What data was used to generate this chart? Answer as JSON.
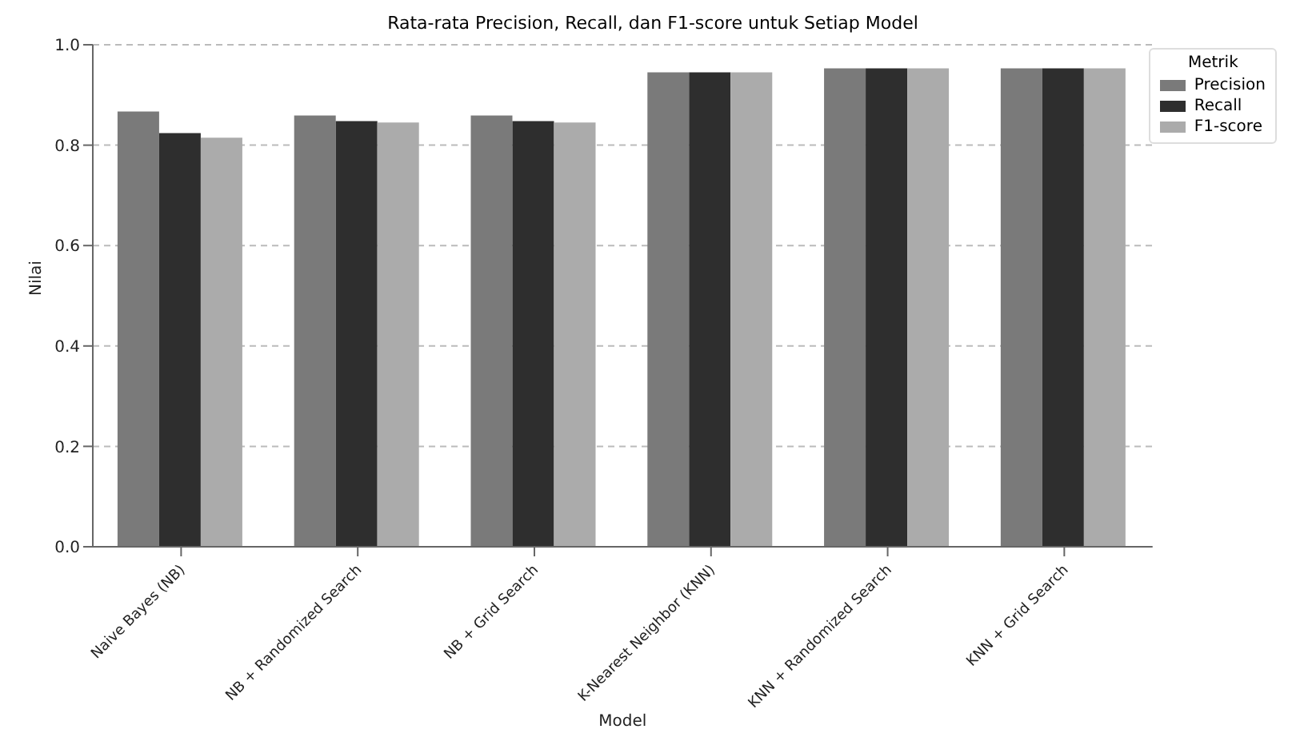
{
  "chart_data": {
    "type": "bar",
    "title": "Rata-rata Precision, Recall, dan F1-score untuk Setiap Model",
    "xlabel": "Model",
    "ylabel": "Nilai",
    "legend_title": "Metrik",
    "categories": [
      "Naive Bayes (NB)",
      "NB + Randomized Search",
      "NB + Grid Search",
      "K-Nearest Neighbor (KNN)",
      "KNN + Randomized Search",
      "KNN + Grid Search"
    ],
    "series": [
      {
        "name": "Precision",
        "color": "#7a7a7a",
        "values": [
          0.867,
          0.859,
          0.859,
          0.945,
          0.953,
          0.953
        ]
      },
      {
        "name": "Recall",
        "color": "#2e2e2e",
        "values": [
          0.824,
          0.848,
          0.848,
          0.945,
          0.953,
          0.953
        ]
      },
      {
        "name": "F1-score",
        "color": "#ababab",
        "values": [
          0.815,
          0.845,
          0.845,
          0.945,
          0.953,
          0.953
        ]
      }
    ],
    "ylim": [
      0,
      1
    ],
    "yticks": [
      {
        "value": 0,
        "label": "0.0"
      },
      {
        "value": 0.2,
        "label": "0.2"
      },
      {
        "value": 0.4,
        "label": "0.4"
      },
      {
        "value": 0.6,
        "label": "0.6"
      },
      {
        "value": 0.8,
        "label": "0.8"
      },
      {
        "value": 1,
        "label": "1.0"
      }
    ],
    "grid": "y",
    "legend": "top right"
  }
}
